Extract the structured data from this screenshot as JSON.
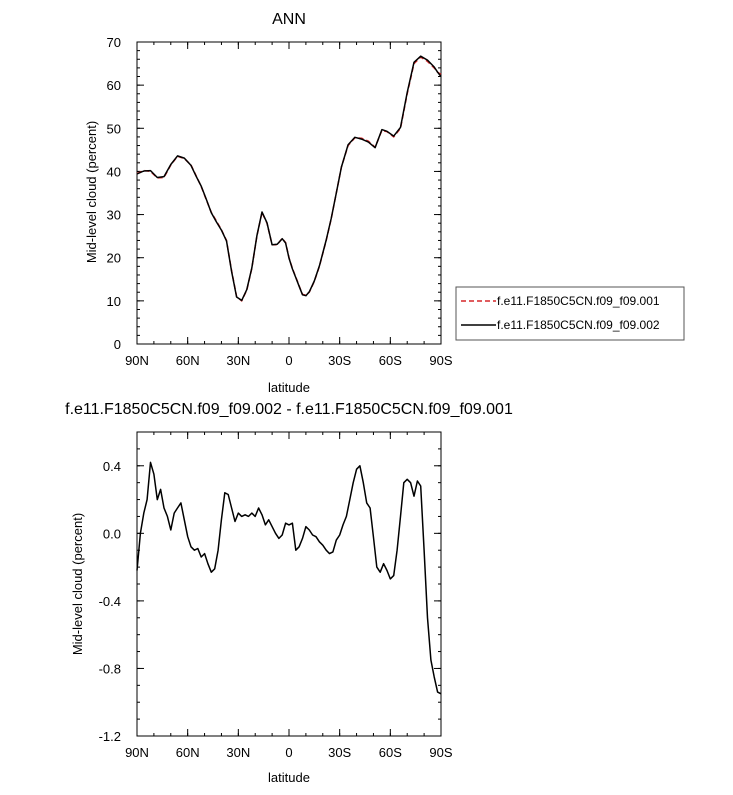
{
  "chart_data": [
    {
      "type": "line",
      "title": "ANN",
      "xlabel": "latitude",
      "ylabel": "Mid-level cloud (percent)",
      "xlim": [
        90,
        -90
      ],
      "ylim": [
        0,
        70
      ],
      "x_ticks": [
        90,
        60,
        30,
        0,
        -30,
        -60,
        -90
      ],
      "x_tick_labels": [
        "90N",
        "60N",
        "30N",
        "0",
        "30S",
        "60S",
        "90S"
      ],
      "y_ticks": [
        0,
        10,
        20,
        30,
        40,
        50,
        60,
        70
      ],
      "y_tick_labels": [
        "0",
        "10",
        "20",
        "30",
        "40",
        "50",
        "60",
        "70"
      ],
      "legend_position": "right",
      "grid": false,
      "x": [
        90,
        86,
        82,
        78,
        74,
        70,
        66,
        62,
        58,
        55,
        52,
        49,
        46,
        43,
        40,
        37,
        34,
        31,
        28,
        25,
        22,
        19,
        16,
        13,
        10,
        7,
        4,
        2,
        0,
        -2,
        -4,
        -6,
        -8,
        -10,
        -12,
        -15,
        -18,
        -20,
        -22,
        -25,
        -28,
        -31,
        -35,
        -39,
        -43,
        -47,
        -51,
        -55,
        -58,
        -62,
        -66,
        -70,
        -74,
        -78,
        -82,
        -86,
        -88,
        -90
      ],
      "series": [
        {
          "name": "f.e11.F1850C5CN.f09_f09.001",
          "color": "#d62728",
          "dash": "dashed",
          "values": [
            39.5,
            40.2,
            40.0,
            38.5,
            38.6,
            41.5,
            43.5,
            43.0,
            41.5,
            39.0,
            36.5,
            33.5,
            30.5,
            28.5,
            26.5,
            24.0,
            17.0,
            11.0,
            10.0,
            12.5,
            17.5,
            25.0,
            30.5,
            28.0,
            23.0,
            23.0,
            24.5,
            23.5,
            20.0,
            17.5,
            15.5,
            13.5,
            11.5,
            11.3,
            12.0,
            14.5,
            18.0,
            21.0,
            24.0,
            29.0,
            35.0,
            41.0,
            46.0,
            47.8,
            47.7,
            47.0,
            45.6,
            49.5,
            49.2,
            48.0,
            50.0,
            58.0,
            65.0,
            66.5,
            65.5,
            64.0,
            63.0,
            62.5
          ]
        },
        {
          "name": "f.e11.F1850C5CN.f09_f09.002",
          "color": "#000000",
          "dash": "solid",
          "values": [
            39.4,
            40.1,
            40.2,
            38.6,
            38.8,
            41.6,
            43.6,
            43.1,
            41.4,
            38.9,
            36.6,
            33.6,
            30.4,
            28.3,
            26.4,
            23.9,
            16.8,
            10.9,
            10.1,
            12.6,
            17.6,
            25.1,
            30.6,
            28.1,
            23.0,
            23.1,
            24.4,
            23.4,
            19.9,
            17.4,
            15.4,
            13.4,
            11.4,
            11.2,
            12.1,
            14.6,
            18.1,
            21.1,
            24.1,
            29.1,
            35.0,
            41.0,
            46.2,
            47.9,
            47.5,
            46.8,
            45.5,
            49.7,
            49.3,
            48.2,
            50.2,
            58.3,
            65.3,
            66.7,
            65.8,
            64.2,
            63.0,
            62.0
          ]
        }
      ]
    },
    {
      "type": "line",
      "title": "f.e11.F1850C5CN.f09_f09.002 - f.e11.F1850C5CN.f09_f09.001",
      "xlabel": "latitude",
      "ylabel": "Mid-level cloud (percent)",
      "xlim": [
        90,
        -90
      ],
      "ylim": [
        -1.2,
        0.6
      ],
      "x_ticks": [
        90,
        60,
        30,
        0,
        -30,
        -60,
        -90
      ],
      "x_tick_labels": [
        "90N",
        "60N",
        "30N",
        "0",
        "30S",
        "60S",
        "90S"
      ],
      "y_ticks": [
        -1.2,
        -0.8,
        -0.4,
        0.0,
        0.4
      ],
      "y_tick_labels": [
        "-1.2",
        "-0.8",
        "-0.4",
        "0.0",
        "0.4"
      ],
      "grid": false,
      "x": [
        90,
        88,
        86,
        84,
        82,
        80,
        78,
        76,
        74,
        72,
        70,
        68,
        66,
        64,
        62,
        60,
        58,
        56,
        54,
        52,
        50,
        48,
        46,
        44,
        42,
        40,
        38,
        36,
        34,
        32,
        30,
        28,
        26,
        24,
        22,
        20,
        18,
        16,
        14,
        12,
        10,
        8,
        6,
        4,
        2,
        0,
        -2,
        -4,
        -6,
        -8,
        -10,
        -12,
        -14,
        -16,
        -18,
        -20,
        -22,
        -24,
        -26,
        -28,
        -30,
        -32,
        -34,
        -36,
        -38,
        -40,
        -42,
        -44,
        -46,
        -48,
        -50,
        -52,
        -54,
        -56,
        -58,
        -60,
        -62,
        -64,
        -66,
        -68,
        -70,
        -72,
        -74,
        -76,
        -78,
        -80,
        -82,
        -84,
        -86,
        -88,
        -90
      ],
      "series": [
        {
          "name": "f.e11.F1850C5CN.f09_f09.002 - f.e11.F1850C5CN.f09_f09.001",
          "color": "#000000",
          "dash": "solid",
          "values": [
            -0.22,
            0.0,
            0.12,
            0.2,
            0.42,
            0.35,
            0.2,
            0.26,
            0.15,
            0.1,
            0.02,
            0.12,
            0.15,
            0.18,
            0.08,
            -0.02,
            -0.08,
            -0.1,
            -0.09,
            -0.14,
            -0.12,
            -0.18,
            -0.23,
            -0.21,
            -0.1,
            0.08,
            0.24,
            0.23,
            0.15,
            0.07,
            0.12,
            0.1,
            0.11,
            0.1,
            0.12,
            0.1,
            0.15,
            0.11,
            0.05,
            0.08,
            0.04,
            0.0,
            -0.03,
            -0.01,
            0.06,
            0.05,
            0.06,
            -0.1,
            -0.08,
            -0.03,
            0.04,
            0.02,
            -0.01,
            -0.02,
            -0.05,
            -0.07,
            -0.1,
            -0.12,
            -0.11,
            -0.04,
            -0.01,
            0.05,
            0.1,
            0.2,
            0.3,
            0.38,
            0.4,
            0.3,
            0.18,
            0.15,
            -0.02,
            -0.2,
            -0.23,
            -0.18,
            -0.22,
            -0.27,
            -0.25,
            -0.1,
            0.1,
            0.3,
            0.32,
            0.3,
            0.22,
            0.31,
            0.28,
            -0.1,
            -0.5,
            -0.75,
            -0.85,
            -0.94,
            -0.95
          ]
        }
      ]
    }
  ]
}
